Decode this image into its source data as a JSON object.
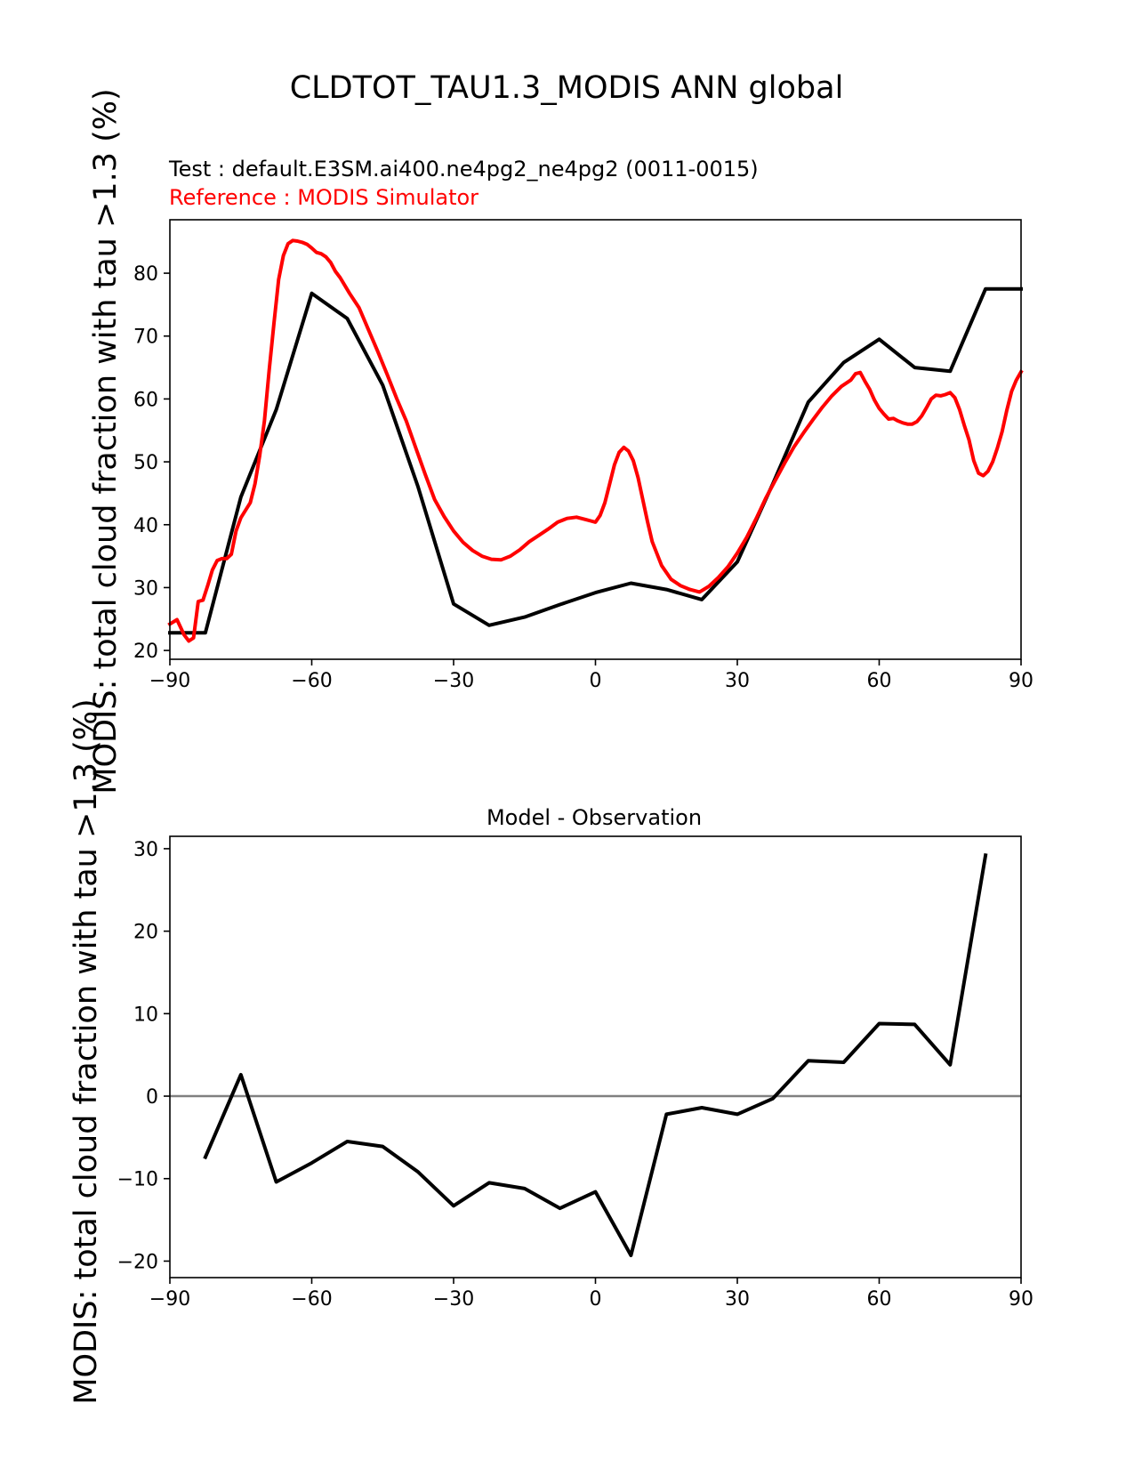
{
  "figure": {
    "title": "CLDTOT_TAU1.3_MODIS ANN global",
    "test_label": "Test : default.E3SM.ai400.ne4pg2_ne4pg2 (0011-0015)",
    "reference_label": "Reference : MODIS Simulator",
    "colors": {
      "test": "#000000",
      "reference": "#ff0000",
      "zero_line": "#808080"
    }
  },
  "chart_data": [
    {
      "type": "line",
      "title": "",
      "xlabel": "",
      "ylabel": "MODIS: total cloud fraction with tau >1.3 (%)",
      "xlim": [
        -90,
        90
      ],
      "ylim": [
        18.6,
        88.5
      ],
      "xticks": [
        -90,
        -60,
        -30,
        0,
        30,
        60,
        90
      ],
      "xtick_labels": [
        "−90",
        "−60",
        "−30",
        "0",
        "30",
        "60",
        "90"
      ],
      "yticks": [
        20,
        30,
        40,
        50,
        60,
        70,
        80
      ],
      "ytick_labels": [
        "20",
        "30",
        "40",
        "50",
        "60",
        "70",
        "80"
      ],
      "series": [
        {
          "name": "Test : default.E3SM.ai400.ne4pg2_ne4pg2 (0011-0015)",
          "color": "#000000",
          "x": [
            -90,
            -82.5,
            -75,
            -67.5,
            -60,
            -52.5,
            -45,
            -37.5,
            -30,
            -22.5,
            -15,
            -7.5,
            0,
            7.5,
            15,
            22.5,
            30,
            37.5,
            45,
            52.5,
            60,
            67.5,
            75,
            82.5,
            90
          ],
          "y": [
            22.8,
            22.8,
            44.4,
            58.3,
            76.8,
            72.8,
            62.2,
            46.0,
            27.4,
            24.0,
            25.3,
            27.3,
            29.2,
            30.7,
            29.7,
            28.1,
            34.1,
            46.5,
            59.5,
            65.8,
            69.5,
            65.0,
            64.4,
            77.5,
            77.5
          ]
        },
        {
          "name": "Reference : MODIS Simulator",
          "color": "#ff0000",
          "x": [
            -90,
            -88.5,
            -87,
            -86,
            -85,
            -84,
            -83,
            -82,
            -81,
            -80,
            -79,
            -78,
            -77,
            -76,
            -75,
            -74,
            -73,
            -72,
            -71,
            -70,
            -69,
            -68,
            -67,
            -66,
            -65,
            -64,
            -63,
            -62,
            -61,
            -60,
            -59,
            -58,
            -57,
            -56,
            -55,
            -54,
            -52,
            -50,
            -48,
            -46,
            -44,
            -42,
            -40,
            -38,
            -36,
            -34,
            -32,
            -30,
            -28,
            -26,
            -24,
            -22,
            -20,
            -18,
            -16,
            -14,
            -12,
            -10,
            -8,
            -6,
            -4,
            -2,
            -1,
            0,
            1,
            2,
            3,
            4,
            5,
            6,
            7,
            8,
            9,
            10,
            11,
            12,
            14,
            16,
            18,
            20,
            22,
            24,
            26,
            28,
            30,
            32,
            34,
            36,
            38,
            40,
            42,
            44,
            46,
            48,
            50,
            52,
            54,
            55,
            56,
            57,
            58,
            59,
            60,
            61,
            62,
            63,
            64,
            65,
            66,
            67,
            68,
            69,
            70,
            71,
            72,
            73,
            74,
            75,
            76,
            77,
            78,
            79,
            80,
            81,
            82,
            83,
            84,
            85,
            86,
            87,
            88,
            89,
            90
          ],
          "y": [
            24.2,
            24.9,
            22.5,
            21.5,
            22.0,
            27.8,
            28.0,
            30.3,
            32.8,
            34.3,
            34.6,
            34.6,
            35.3,
            39.0,
            41.1,
            42.3,
            43.5,
            46.5,
            51.0,
            56.5,
            64.5,
            72.0,
            79.0,
            82.8,
            84.7,
            85.2,
            85.1,
            84.9,
            84.6,
            84.0,
            83.3,
            83.1,
            82.6,
            81.7,
            80.3,
            79.3,
            76.8,
            74.5,
            71.0,
            67.5,
            63.8,
            60.0,
            56.5,
            52.2,
            48.0,
            44.0,
            41.3,
            39.0,
            37.2,
            35.9,
            35.0,
            34.5,
            34.4,
            35.0,
            36.0,
            37.3,
            38.3,
            39.3,
            40.4,
            41.0,
            41.2,
            40.8,
            40.6,
            40.4,
            41.5,
            43.5,
            46.5,
            49.5,
            51.5,
            52.3,
            51.7,
            50.2,
            47.5,
            44.0,
            40.5,
            37.3,
            33.5,
            31.3,
            30.3,
            29.7,
            29.3,
            30.2,
            31.6,
            33.3,
            35.5,
            38.0,
            41.0,
            44.2,
            47.0,
            49.8,
            52.4,
            54.6,
            56.7,
            58.7,
            60.5,
            62.0,
            63.0,
            64.0,
            64.2,
            62.8,
            61.5,
            59.8,
            58.5,
            57.6,
            56.8,
            56.9,
            56.5,
            56.2,
            56.0,
            56.0,
            56.4,
            57.3,
            58.6,
            60.0,
            60.6,
            60.5,
            60.7,
            61.0,
            60.2,
            58.3,
            55.8,
            53.5,
            50.2,
            48.2,
            47.8,
            48.5,
            50.0,
            52.2,
            54.8,
            58.2,
            61.2,
            63.0,
            64.3
          ]
        }
      ]
    },
    {
      "type": "line",
      "title": "Model - Observation",
      "xlabel": "",
      "ylabel": "MODIS: total cloud fraction with tau >1.3 (%)",
      "xlim": [
        -90,
        90
      ],
      "ylim": [
        -22,
        31.5
      ],
      "xticks": [
        -90,
        -60,
        -30,
        0,
        30,
        60,
        90
      ],
      "xtick_labels": [
        "−90",
        "−60",
        "−30",
        "0",
        "30",
        "60",
        "90"
      ],
      "yticks": [
        -20,
        -10,
        0,
        10,
        20,
        30
      ],
      "ytick_labels": [
        "−20",
        "−10",
        "0",
        "10",
        "20",
        "30"
      ],
      "zero_line": 0,
      "series": [
        {
          "name": "",
          "color": "#000000",
          "x": [
            -82.5,
            -75,
            -67.5,
            -60,
            -52.5,
            -45,
            -37.5,
            -30,
            -22.5,
            -15,
            -7.5,
            0,
            7.5,
            15,
            22.5,
            30,
            37.5,
            45,
            52.5,
            60,
            67.5,
            75,
            82.5
          ],
          "y": [
            -7.4,
            2.6,
            -10.4,
            -8.1,
            -5.5,
            -6.1,
            -9.2,
            -13.3,
            -10.5,
            -11.2,
            -13.6,
            -11.6,
            -19.3,
            -2.2,
            -1.4,
            -2.2,
            -0.3,
            4.3,
            4.1,
            8.8,
            8.7,
            3.8,
            29.2
          ]
        }
      ]
    }
  ]
}
